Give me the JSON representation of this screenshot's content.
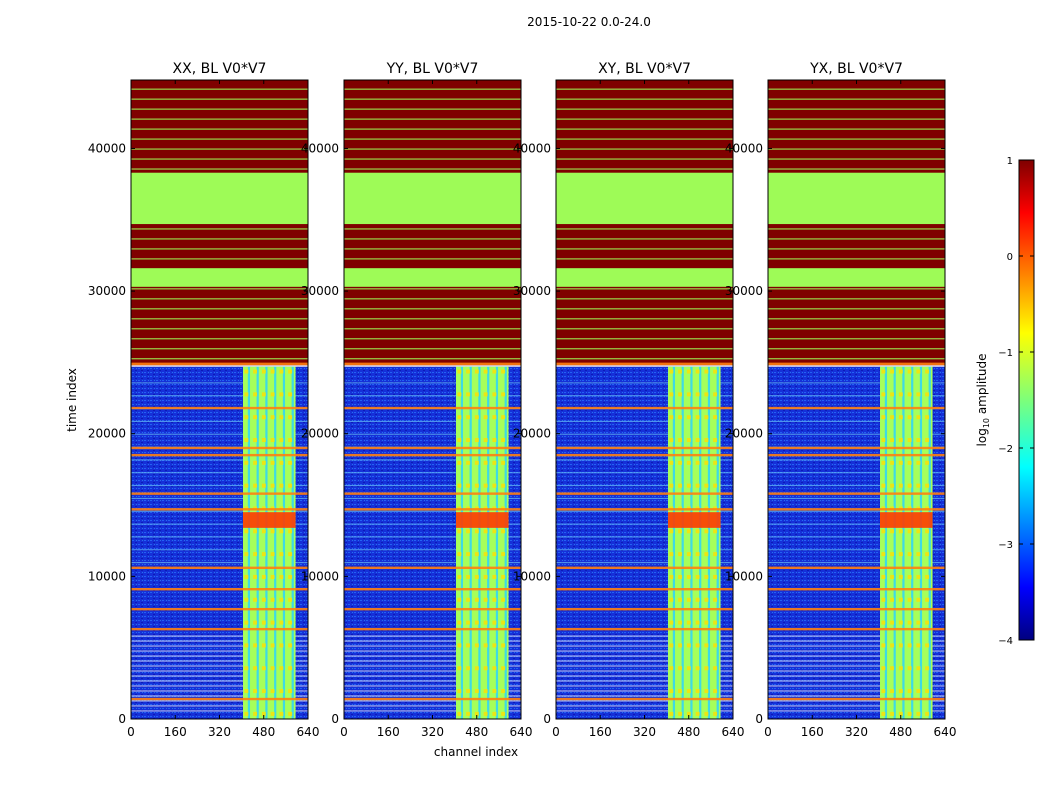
{
  "figure_title": "2015-10-22 0.0-24.0",
  "colors": {
    "background": "#ffffff",
    "flag_dark_red": "#7f0000",
    "light_green": "#9efb57",
    "orange": "#ff7f0e",
    "blue_field": "#1530d8"
  },
  "chart_data": {
    "type": "heatmap",
    "shared_xlabel": "channel index",
    "shared_ylabel": "time index",
    "xlim": [
      0,
      640
    ],
    "ylim": [
      0,
      44800
    ],
    "x_ticks": [
      "0",
      "160",
      "320",
      "480",
      "640"
    ],
    "x_tick_values": [
      0,
      160,
      320,
      480,
      640
    ],
    "y_ticks": [
      "0",
      "10000",
      "20000",
      "30000",
      "40000"
    ],
    "y_tick_values": [
      0,
      10000,
      20000,
      30000,
      40000
    ],
    "panels": [
      {
        "title": "XX, BL V0*V7"
      },
      {
        "title": "YY, BL V0*V7"
      },
      {
        "title": "XY, BL V0*V7"
      },
      {
        "title": "YX, BL V0*V7"
      }
    ],
    "bands": [
      {
        "from": 24800,
        "to": 44800,
        "level": "flagged"
      },
      {
        "from": 34700,
        "to": 38300,
        "level": "light"
      },
      {
        "from": 30300,
        "to": 31600,
        "level": "light"
      },
      {
        "from": 0,
        "to": 24700,
        "level": "low"
      }
    ],
    "bright_channels": [
      [
        405,
        595
      ]
    ],
    "orange_rows": [
      1400,
      6300,
      7700,
      9100,
      10600,
      14700,
      15800,
      18500,
      19000,
      21800,
      24900
    ],
    "colorbar": {
      "label": "log10 amplitude",
      "range": [
        -4,
        1
      ],
      "ticks": [
        "1",
        "0",
        "−1",
        "−2",
        "−3",
        "−4"
      ],
      "tick_values": [
        1,
        0,
        -1,
        -2,
        -3,
        -4
      ],
      "colormap": "jet"
    }
  }
}
